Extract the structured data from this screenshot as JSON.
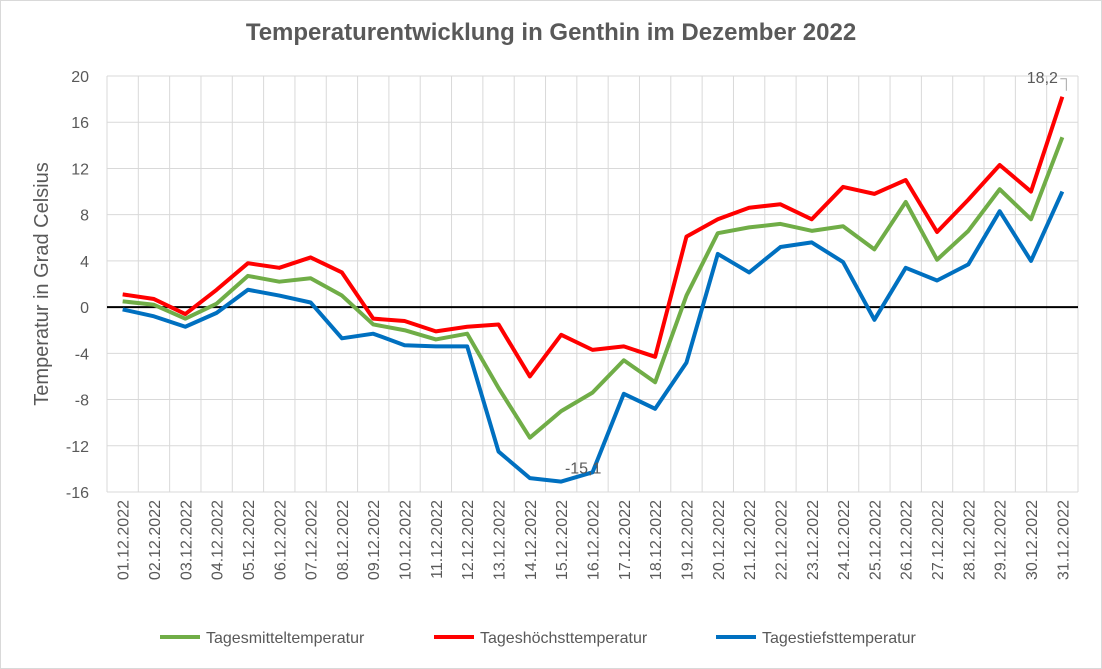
{
  "chart_data": {
    "type": "line",
    "title": "Temperaturentwicklung in Genthin im Dezember 2022",
    "y_label": "Temperatur in Grad Celsius",
    "categories": [
      "01.12.2022",
      "02.12.2022",
      "03.12.2022",
      "04.12.2022",
      "05.12.2022",
      "06.12.2022",
      "07.12.2022",
      "08.12.2022",
      "09.12.2022",
      "10.12.2022",
      "11.12.2022",
      "12.12.2022",
      "13.12.2022",
      "14.12.2022",
      "15.12.2022",
      "16.12.2022",
      "17.12.2022",
      "18.12.2022",
      "19.12.2022",
      "20.12.2022",
      "21.12.2022",
      "22.12.2022",
      "23.12.2022",
      "24.12.2022",
      "25.12.2022",
      "26.12.2022",
      "27.12.2022",
      "28.12.2022",
      "29.12.2022",
      "30.12.2022",
      "31.12.2022"
    ],
    "series": [
      {
        "name": "Tagesmitteltemperatur",
        "color": "#70ad47",
        "values": [
          0.5,
          0.2,
          -1.0,
          0.3,
          2.7,
          2.2,
          2.5,
          1.0,
          -1.5,
          -2.0,
          -2.8,
          -2.3,
          -7.0,
          -11.3,
          -9.0,
          -7.4,
          -4.6,
          -6.5,
          1.0,
          6.4,
          6.9,
          7.2,
          6.6,
          7.0,
          5.0,
          9.1,
          4.1,
          6.6,
          10.2,
          7.6,
          14.7
        ]
      },
      {
        "name": "Tageshöchsttemperatur",
        "color": "#ff0000",
        "values": [
          1.1,
          0.7,
          -0.6,
          1.5,
          3.8,
          3.4,
          4.3,
          3.0,
          -1.0,
          -1.2,
          -2.1,
          -1.7,
          -1.5,
          -6.0,
          -2.4,
          -3.7,
          -3.4,
          -4.3,
          6.1,
          7.6,
          8.6,
          8.9,
          7.6,
          10.4,
          9.8,
          11.0,
          6.5,
          9.3,
          12.3,
          10.0,
          18.2
        ],
        "value_labels": [
          null,
          null,
          null,
          null,
          null,
          null,
          null,
          null,
          null,
          null,
          null,
          null,
          null,
          null,
          null,
          null,
          null,
          null,
          null,
          null,
          null,
          null,
          null,
          null,
          null,
          null,
          null,
          null,
          null,
          null,
          "18,2"
        ]
      },
      {
        "name": "Tagestiefsttemperatur",
        "color": "#0070c0",
        "values": [
          -0.2,
          -0.8,
          -1.7,
          -0.5,
          1.5,
          1.0,
          0.4,
          -2.7,
          -2.3,
          -3.3,
          -3.4,
          -3.4,
          -12.5,
          -14.8,
          -15.1,
          -14.3,
          -7.5,
          -8.8,
          -4.8,
          4.6,
          3.0,
          5.2,
          5.6,
          3.9,
          -1.1,
          3.4,
          2.3,
          3.7,
          8.3,
          4.0,
          10.0
        ],
        "value_labels": [
          null,
          null,
          null,
          null,
          null,
          null,
          null,
          null,
          null,
          null,
          null,
          null,
          null,
          null,
          "-15,1",
          null,
          null,
          null,
          null,
          null,
          null,
          null,
          null,
          null,
          null,
          null,
          null,
          null,
          null,
          null,
          null
        ]
      }
    ],
    "ylim": [
      -16,
      20
    ],
    "yticks": [
      -16,
      -12,
      -8,
      -4,
      0,
      4,
      8,
      12,
      16,
      20
    ],
    "grid": true,
    "legend": "bottom"
  }
}
